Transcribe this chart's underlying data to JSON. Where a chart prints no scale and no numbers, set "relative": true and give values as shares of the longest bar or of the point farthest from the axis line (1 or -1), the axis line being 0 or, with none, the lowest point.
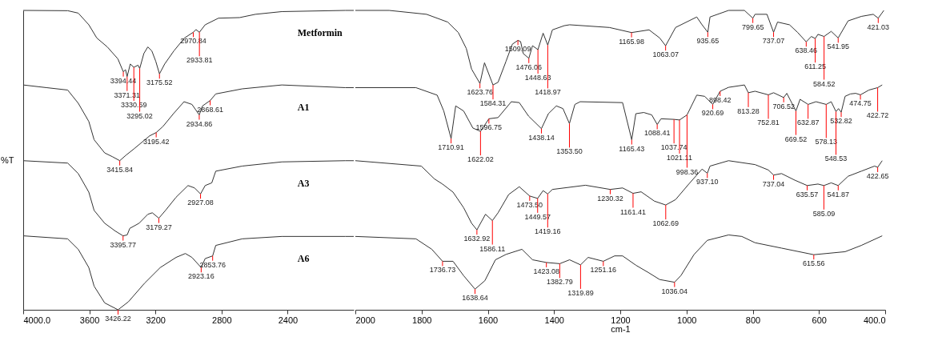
{
  "chart_data": [
    {
      "type": "line",
      "relative": true,
      "ylabel": "%T",
      "xlim": [
        4000,
        2000
      ],
      "xticks": [
        {
          "value": 4000,
          "label": "4000.0"
        },
        3600,
        3200,
        2800,
        2400
      ],
      "grid": false,
      "marker": "none",
      "line_style": "solid",
      "series": [
        {
          "name": "Metformin",
          "color": "#333333",
          "x": [
            4000,
            3731,
            3667,
            3603,
            3555,
            3491,
            3427,
            3394.44,
            3381,
            3371.31,
            3352,
            3330.59,
            3305,
            3295.02,
            3270,
            3246,
            3222,
            3198,
            3175.52,
            3144,
            3088,
            3024,
            2970.84,
            2955,
            2933.81,
            2899,
            2819,
            2691,
            2595,
            2435,
            2051,
            2000
          ],
          "values": [
            1.0,
            0.999,
            0.991,
            0.952,
            0.908,
            0.878,
            0.838,
            0.795,
            0.802,
            0.779,
            0.821,
            0.81,
            0.817,
            0.806,
            0.856,
            0.878,
            0.865,
            0.83,
            0.788,
            0.821,
            0.865,
            0.908,
            0.927,
            0.936,
            0.927,
            0.952,
            0.974,
            0.976,
            0.987,
            0.996,
            1.0,
            1.0
          ]
        },
        {
          "name": "A1",
          "color": "#333333",
          "x": [
            4000,
            3859,
            3731,
            3667,
            3603,
            3571,
            3507,
            3459,
            3415.84,
            3379,
            3331,
            3283,
            3235,
            3195.42,
            3155,
            3091,
            3027,
            2979,
            2934.86,
            2915,
            2868.61,
            2835,
            2675,
            2435,
            2051,
            2000
          ],
          "values": [
            0.751,
            0.742,
            0.734,
            0.69,
            0.629,
            0.568,
            0.524,
            0.511,
            0.498,
            0.516,
            0.537,
            0.559,
            0.581,
            0.592,
            0.612,
            0.655,
            0.695,
            0.686,
            0.651,
            0.681,
            0.699,
            0.721,
            0.738,
            0.751,
            0.742,
            0.742
          ]
        },
        {
          "name": "A3",
          "color": "#333333",
          "x": [
            4000,
            3731,
            3667,
            3603,
            3571,
            3507,
            3443,
            3395.77,
            3371,
            3355,
            3299,
            3246,
            3219,
            3179.27,
            3139,
            3075,
            3003,
            2963,
            2927.08,
            2899,
            2859,
            2835,
            2675,
            2435,
            2051,
            2000
          ],
          "values": [
            0.498,
            0.49,
            0.455,
            0.393,
            0.332,
            0.289,
            0.263,
            0.247,
            0.25,
            0.272,
            0.289,
            0.319,
            0.324,
            0.306,
            0.332,
            0.376,
            0.415,
            0.407,
            0.387,
            0.415,
            0.424,
            0.463,
            0.48,
            0.494,
            0.498,
            0.498
          ]
        },
        {
          "name": "A6",
          "color": "#333333",
          "x": [
            4000,
            3731,
            3667,
            3603,
            3571,
            3507,
            3426.22,
            3363,
            3267,
            3171,
            3075,
            3019,
            2979,
            2923.16,
            2899,
            2853.76,
            2835,
            2675,
            2435,
            2051,
            2000
          ],
          "values": [
            0.247,
            0.237,
            0.202,
            0.141,
            0.079,
            0.023,
            0,
            0.027,
            0.088,
            0.141,
            0.175,
            0.188,
            0.175,
            0.141,
            0.171,
            0.18,
            0.215,
            0.237,
            0.245,
            0.245,
            0.245
          ]
        }
      ],
      "annotations": [
        {
          "text": "3394.44",
          "x": 3394.44,
          "y": 0.795
        },
        {
          "text": "3371.31",
          "x": 3371.31,
          "y": 0.779
        },
        {
          "text": "3330.59",
          "x": 3330.59,
          "y": 0.81
        },
        {
          "text": "3295.02",
          "x": 3295.02,
          "y": 0.806
        },
        {
          "text": "3175.52",
          "x": 3175.52,
          "y": 0.788
        },
        {
          "text": "2970.84",
          "x": 2970.84,
          "y": 0.927
        },
        {
          "text": "2933.81",
          "x": 2933.81,
          "y": 0.927
        },
        {
          "text": "3415.84",
          "x": 3415.84,
          "y": 0.498
        },
        {
          "text": "3195.42",
          "x": 3195.42,
          "y": 0.592
        },
        {
          "text": "2934.86",
          "x": 2934.86,
          "y": 0.651
        },
        {
          "text": "2868.61",
          "x": 2868.61,
          "y": 0.699
        },
        {
          "text": "3395.77",
          "x": 3395.77,
          "y": 0.247
        },
        {
          "text": "3179.27",
          "x": 3179.27,
          "y": 0.306
        },
        {
          "text": "2927.08",
          "x": 2927.08,
          "y": 0.387
        },
        {
          "text": "3426.22",
          "x": 3426.22,
          "y": 0
        },
        {
          "text": "2923.16",
          "x": 2923.16,
          "y": 0.141
        },
        {
          "text": "2853.76",
          "x": 2853.76,
          "y": 0.18
        }
      ]
    },
    {
      "type": "line",
      "relative": true,
      "xlabel": "cm-1",
      "xlim": [
        2000,
        400
      ],
      "xticks": [
        2000,
        1800,
        1600,
        1400,
        1200,
        1000,
        800,
        600,
        {
          "value": 400,
          "label": "400.0"
        }
      ],
      "grid": false,
      "marker": "none",
      "line_style": "solid",
      "tick_labels": "x",
      "series": [
        {
          "color": "#333333",
          "x": [
            2000,
            1898,
            1785,
            1721,
            1689,
            1665,
            1649,
            1623.76,
            1610,
            1584.31,
            1569,
            1545,
            1526,
            1509.09,
            1501,
            1493,
            1476.06,
            1465,
            1448.63,
            1433,
            1418.97,
            1405,
            1369,
            1353,
            1233,
            1165.98,
            1113,
            1081,
            1063.07,
            1033,
            969,
            953,
            935.65,
            929,
            873,
            825,
            799.65,
            793,
            757,
            737.07,
            725,
            689,
            664,
            638.46,
            623,
            611.25,
            603,
            584.52,
            563,
            541.95,
            512,
            472,
            436,
            421.03,
            404
          ],
          "values": [
            1.0,
            1.0,
            0.987,
            0.961,
            0.926,
            0.873,
            0.804,
            0.756,
            0.825,
            0.751,
            0.76,
            0.83,
            0.887,
            0.9,
            0.896,
            0.856,
            0.84,
            0.882,
            0.869,
            0.924,
            0.884,
            0.935,
            0.949,
            0.952,
            0.943,
            0.926,
            0.935,
            0.908,
            0.882,
            0.943,
            0.978,
            0.952,
            0.927,
            0.978,
            1.0,
            1.0,
            0.974,
            0.987,
            0.987,
            0.927,
            0.961,
            0.952,
            0.926,
            0.895,
            0.913,
            0.906,
            0.92,
            0.913,
            0.93,
            0.908,
            0.965,
            0.98,
            0.987,
            0.974,
            1.0
          ]
        },
        {
          "color": "#333333",
          "x": [
            2000,
            1817,
            1753,
            1733,
            1710.91,
            1697,
            1673,
            1645,
            1622.02,
            1596.75,
            1569,
            1529,
            1505,
            1477,
            1438.14,
            1417,
            1393,
            1373,
            1353.5,
            1337,
            1321,
            1193,
            1165.43,
            1153,
            1129,
            1105,
            1088.41,
            1077,
            1037.74,
            1021.11,
            998.36,
            969,
            945,
            920.69,
            898.42,
            873,
            825,
            813.28,
            793,
            752.81,
            737,
            706.52,
            697,
            669.52,
            657,
            632.87,
            609,
            578.13,
            563,
            548.53,
            541,
            532.82,
            521,
            505,
            489,
            474.75,
            449,
            422.72,
            409
          ],
          "values": [
            0.742,
            0.742,
            0.717,
            0.664,
            0.572,
            0.681,
            0.664,
            0.607,
            0.596,
            0.638,
            0.642,
            0.695,
            0.692,
            0.647,
            0.605,
            0.655,
            0.681,
            0.672,
            0.622,
            0.686,
            0.695,
            0.692,
            0.568,
            0.655,
            0.659,
            0.651,
            0.619,
            0.638,
            0.636,
            0.634,
            0.651,
            0.717,
            0.713,
            0.686,
            0.73,
            0.743,
            0.751,
            0.725,
            0.73,
            0.718,
            0.725,
            0.709,
            0.723,
            0.664,
            0.703,
            0.686,
            0.695,
            0.686,
            0.695,
            0.662,
            0.672,
            0.66,
            0.713,
            0.721,
            0.723,
            0.718,
            0.734,
            0.742,
            0.751
          ]
        },
        {
          "color": "#333333",
          "x": [
            2000,
            1801,
            1761,
            1737,
            1705,
            1673,
            1649,
            1632.92,
            1607,
            1586.11,
            1569,
            1537,
            1505,
            1473.5,
            1449.57,
            1433,
            1419.16,
            1405,
            1305,
            1230.32,
            1193,
            1161.41,
            1137,
            1097,
            1062.69,
            1033,
            993,
            953,
            937.1,
            929,
            873,
            793,
            753,
            737.04,
            713,
            673,
            635.57,
            603,
            585.09,
            563,
            541.87,
            512,
            472,
            432,
            422.65,
            409
          ],
          "values": [
            0.498,
            0.48,
            0.437,
            0.42,
            0.393,
            0.341,
            0.289,
            0.267,
            0.319,
            0.298,
            0.324,
            0.385,
            0.411,
            0.38,
            0.372,
            0.398,
            0.387,
            0.402,
            0.416,
            0.402,
            0.407,
            0.389,
            0.394,
            0.363,
            0.35,
            0.368,
            0.42,
            0.47,
            0.456,
            0.48,
            0.498,
            0.485,
            0.467,
            0.45,
            0.455,
            0.433,
            0.415,
            0.42,
            0.415,
            0.424,
            0.415,
            0.446,
            0.463,
            0.48,
            0.476,
            0.498
          ]
        },
        {
          "color": "#333333",
          "x": [
            2000,
            1817,
            1769,
            1736.73,
            1705,
            1673,
            1638.64,
            1609,
            1577,
            1545,
            1497,
            1465,
            1423.08,
            1382.79,
            1353,
            1319.89,
            1297,
            1251.16,
            1217,
            1193,
            1153,
            1113,
            1081,
            1036.04,
            1017,
            977,
            937,
            873,
            833,
            793,
            713,
            615.56,
            521,
            472,
            409
          ],
          "values": [
            0.245,
            0.237,
            0.202,
            0.162,
            0.162,
            0.114,
            0.069,
            0.097,
            0.167,
            0.185,
            0.202,
            0.167,
            0.158,
            0.154,
            0.167,
            0.15,
            0.175,
            0.162,
            0.18,
            0.18,
            0.149,
            0.123,
            0.101,
            0.092,
            0.114,
            0.185,
            0.232,
            0.25,
            0.245,
            0.224,
            0.206,
            0.184,
            0.194,
            0.215,
            0.247
          ]
        }
      ],
      "annotations": [
        {
          "text": "1623.76",
          "x": 1623.76,
          "y": 0.756
        },
        {
          "text": "1584.31",
          "x": 1584.31,
          "y": 0.751
        },
        {
          "text": "1509.09",
          "x": 1509.09,
          "y": 0.9
        },
        {
          "text": "1476.06",
          "x": 1476.06,
          "y": 0.84
        },
        {
          "text": "1448.63",
          "x": 1448.63,
          "y": 0.869
        },
        {
          "text": "1418.97",
          "x": 1418.97,
          "y": 0.884
        },
        {
          "text": "1165.98",
          "x": 1165.98,
          "y": 0.926
        },
        {
          "text": "1063.07",
          "x": 1063.07,
          "y": 0.882
        },
        {
          "text": "935.65",
          "x": 935.65,
          "y": 0.927
        },
        {
          "text": "799.65",
          "x": 799.65,
          "y": 0.974
        },
        {
          "text": "737.07",
          "x": 737.07,
          "y": 0.927
        },
        {
          "text": "638.46",
          "x": 638.46,
          "y": 0.895
        },
        {
          "text": "611.25",
          "x": 611.25,
          "y": 0.906
        },
        {
          "text": "584.52",
          "x": 584.52,
          "y": 0.913
        },
        {
          "text": "541.95",
          "x": 541.95,
          "y": 0.908
        },
        {
          "text": "421.03",
          "x": 421.03,
          "y": 0.974
        },
        {
          "text": "1710.91",
          "x": 1710.91,
          "y": 0.572
        },
        {
          "text": "1622.02",
          "x": 1622.02,
          "y": 0.596
        },
        {
          "text": "1596.75",
          "x": 1596.75,
          "y": 0.638
        },
        {
          "text": "1438.14",
          "x": 1438.14,
          "y": 0.605
        },
        {
          "text": "1353.50",
          "x": 1353.5,
          "y": 0.622
        },
        {
          "text": "1165.43",
          "x": 1165.43,
          "y": 0.568
        },
        {
          "text": "1088.41",
          "x": 1088.41,
          "y": 0.619
        },
        {
          "text": "1037.74",
          "x": 1037.74,
          "y": 0.636
        },
        {
          "text": "1021.11",
          "x": 1021.11,
          "y": 0.634
        },
        {
          "text": "998.36",
          "x": 998.36,
          "y": 0.651
        },
        {
          "text": "920.69",
          "x": 920.69,
          "y": 0.686
        },
        {
          "text": "898.42",
          "x": 898.42,
          "y": 0.73
        },
        {
          "text": "813.28",
          "x": 813.28,
          "y": 0.725
        },
        {
          "text": "752.81",
          "x": 752.81,
          "y": 0.718
        },
        {
          "text": "706.52",
          "x": 706.52,
          "y": 0.709
        },
        {
          "text": "669.52",
          "x": 669.52,
          "y": 0.664
        },
        {
          "text": "632.87",
          "x": 632.87,
          "y": 0.686
        },
        {
          "text": "578.13",
          "x": 578.13,
          "y": 0.686
        },
        {
          "text": "548.53",
          "x": 548.53,
          "y": 0.662
        },
        {
          "text": "532.82",
          "x": 532.82,
          "y": 0.66
        },
        {
          "text": "474.75",
          "x": 474.75,
          "y": 0.718
        },
        {
          "text": "422.72",
          "x": 422.72,
          "y": 0.742
        },
        {
          "text": "1632.92",
          "x": 1632.92,
          "y": 0.267
        },
        {
          "text": "1586.11",
          "x": 1586.11,
          "y": 0.298
        },
        {
          "text": "1473.50",
          "x": 1473.5,
          "y": 0.38
        },
        {
          "text": "1449.57",
          "x": 1449.57,
          "y": 0.372
        },
        {
          "text": "1419.16",
          "x": 1419.16,
          "y": 0.387
        },
        {
          "text": "1230.32",
          "x": 1230.32,
          "y": 0.402
        },
        {
          "text": "1161.41",
          "x": 1161.41,
          "y": 0.389
        },
        {
          "text": "1062.69",
          "x": 1062.69,
          "y": 0.35
        },
        {
          "text": "937.10",
          "x": 937.1,
          "y": 0.456
        },
        {
          "text": "737.04",
          "x": 737.04,
          "y": 0.45
        },
        {
          "text": "635.57",
          "x": 635.57,
          "y": 0.415
        },
        {
          "text": "585.09",
          "x": 585.09,
          "y": 0.415
        },
        {
          "text": "541.87",
          "x": 541.87,
          "y": 0.415
        },
        {
          "text": "422.65",
          "x": 422.65,
          "y": 0.476
        },
        {
          "text": "1736.73",
          "x": 1736.73,
          "y": 0.162
        },
        {
          "text": "1638.64",
          "x": 1638.64,
          "y": 0.069
        },
        {
          "text": "1423.08",
          "x": 1423.08,
          "y": 0.158
        },
        {
          "text": "1382.79",
          "x": 1382.79,
          "y": 0.154
        },
        {
          "text": "1319.89",
          "x": 1319.89,
          "y": 0.15
        },
        {
          "text": "1251.16",
          "x": 1251.16,
          "y": 0.162
        },
        {
          "text": "1036.04",
          "x": 1036.04,
          "y": 0.092
        },
        {
          "text": "615.56",
          "x": 615.56,
          "y": 0.184
        }
      ]
    }
  ]
}
